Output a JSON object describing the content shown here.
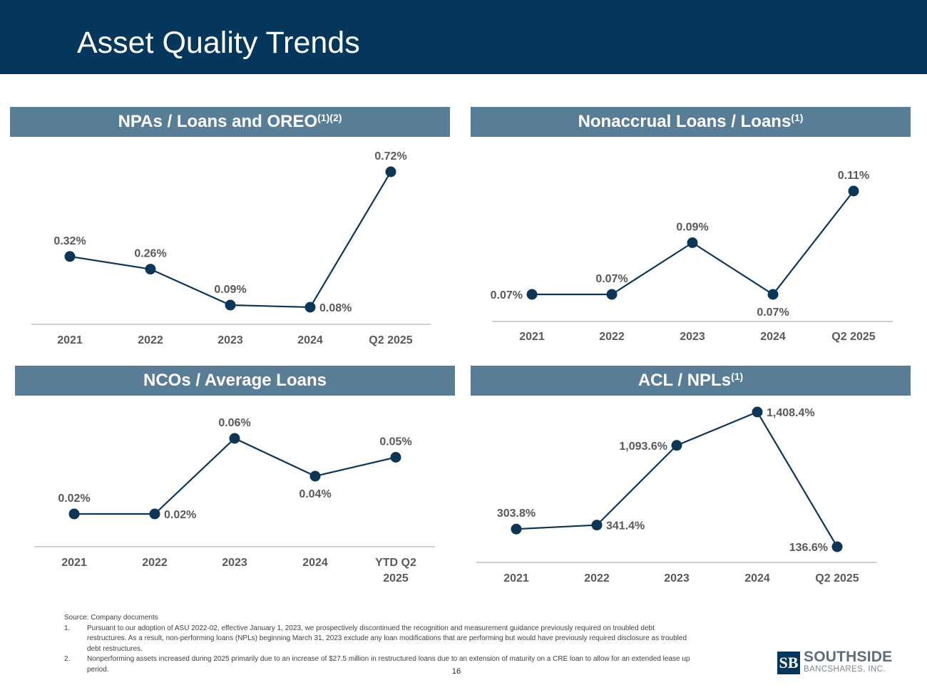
{
  "page": {
    "title": "Asset Quality Trends",
    "page_number": "16"
  },
  "colors": {
    "title_bar": "#04375b",
    "panel_header": "#5a7d97",
    "series_line": "#0d3556",
    "label_text": "#595959"
  },
  "panels": [
    {
      "title": "NPAs / Loans and OREO",
      "footnote_marks": "(1)(2)"
    },
    {
      "title": "Nonaccrual Loans / Loans",
      "footnote_marks": "(1)"
    },
    {
      "title": "NCOs / Average Loans",
      "footnote_marks": ""
    },
    {
      "title": "ACL / NPLs",
      "footnote_marks": "(1)"
    }
  ],
  "chart_data": [
    {
      "type": "line",
      "title": "NPAs / Loans and OREO(1)(2)",
      "categories": [
        "2021",
        "2022",
        "2023",
        "2024",
        "Q2 2025"
      ],
      "series": [
        {
          "values": [
            0.32,
            0.26,
            0.09,
            0.08,
            0.72
          ]
        }
      ],
      "data_labels": [
        "0.32%",
        "0.26%",
        "0.09%",
        "0.08%",
        "0.72%"
      ],
      "data_label_positions": [
        "above",
        "above",
        "above",
        "right",
        "above"
      ],
      "y_range": [
        0.0,
        0.85
      ],
      "grid": false
    },
    {
      "type": "line",
      "title": "Nonaccrual Loans / Loans(1)",
      "categories": [
        "2021",
        "2022",
        "2023",
        "2024",
        "Q2 2025"
      ],
      "series": [
        {
          "values": [
            0.07,
            0.07,
            0.09,
            0.07,
            0.11
          ]
        }
      ],
      "data_labels": [
        "0.07%",
        "0.07%",
        "0.09%",
        "0.07%",
        "0.11%"
      ],
      "data_label_positions": [
        "left",
        "above",
        "above",
        "below",
        "above"
      ],
      "y_range": [
        0.06,
        0.115
      ],
      "grid": false
    },
    {
      "type": "line",
      "title": "NCOs / Average Loans",
      "categories": [
        "2021",
        "2022",
        "2023",
        "2024",
        "YTD Q2 2025"
      ],
      "series": [
        {
          "values": [
            0.02,
            0.02,
            0.06,
            0.04,
            0.05
          ]
        }
      ],
      "data_labels": [
        "0.02%",
        "0.02%",
        "0.06%",
        "0.04%",
        "0.05%"
      ],
      "data_label_positions": [
        "above",
        "right",
        "above",
        "below",
        "above"
      ],
      "y_range": [
        0.0,
        0.07
      ],
      "grid": false
    },
    {
      "type": "line",
      "title": "ACL / NPLs(1)",
      "categories": [
        "2021",
        "2022",
        "2023",
        "2024",
        "Q2 2025"
      ],
      "series": [
        {
          "values": [
            303.8,
            341.4,
            1093.6,
            1408.4,
            136.6
          ]
        }
      ],
      "data_labels": [
        "303.8%",
        "341.4%",
        "1,093.6%",
        "1,408.4%",
        "136.6%"
      ],
      "data_label_positions": [
        "above",
        "right",
        "left",
        "right",
        "left"
      ],
      "y_range": [
        0,
        1500
      ],
      "grid": false
    }
  ],
  "footnotes": {
    "source": "Source: Company documents",
    "items": [
      {
        "num": "1.",
        "text": "Pursuant to our adoption of ASU 2022-02, effective January 1, 2023, we prospectively discontinued the recognition and measurement guidance previously required on troubled debt restructures. As a result, non-performing loans (NPLs) beginning March 31, 2023 exclude any loan modifications that are performing but would have previously required disclosure as troubled debt restructures."
      },
      {
        "num": "2.",
        "text": "Nonperforming assets increased during 2025 primarily due to an increase of $27.5 million in restructured loans due to an extension of maturity on a CRE loan to allow for an extended lease up period."
      }
    ]
  },
  "logo": {
    "mark": "SB",
    "name": "SOUTHSIDE",
    "sub": "BANCSHARES, INC."
  }
}
